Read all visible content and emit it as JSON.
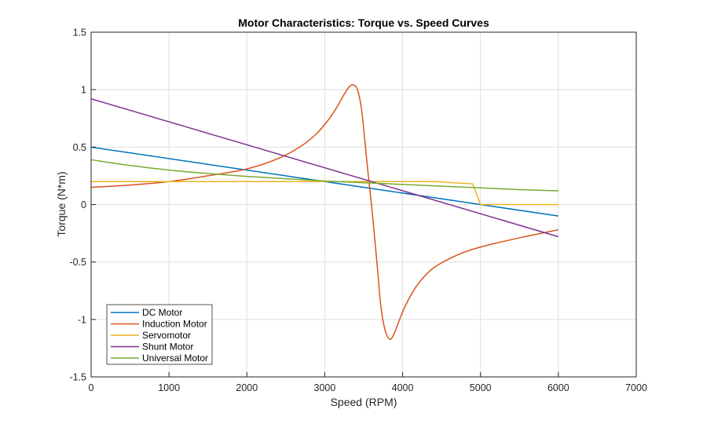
{
  "chart_data": {
    "type": "line",
    "title": "Motor Characteristics: Torque vs. Speed Curves",
    "xlabel": "Speed (RPM)",
    "ylabel": "Torque (N*m)",
    "xlim": [
      0,
      7000
    ],
    "ylim": [
      -1.5,
      1.5
    ],
    "xticks": [
      0,
      1000,
      2000,
      3000,
      4000,
      5000,
      6000,
      7000
    ],
    "xtick_labels": [
      "0",
      "1000",
      "2000",
      "3000",
      "4000",
      "5000",
      "6000",
      "7000"
    ],
    "yticks": [
      -1.5,
      -1,
      -0.5,
      0,
      0.5,
      1,
      1.5
    ],
    "ytick_labels": [
      "-1.5",
      "-1",
      "-0.5",
      "0",
      "0.5",
      "1",
      "1.5"
    ],
    "grid": true,
    "legend_position": "bottom-left",
    "series": [
      {
        "name": "DC Motor",
        "color": "#0072BD",
        "x": [
          0,
          6000
        ],
        "y": [
          0.5,
          -0.1
        ]
      },
      {
        "name": "Induction Motor",
        "color": "#D95319",
        "x": [
          0,
          500,
          1000,
          1500,
          2000,
          2400,
          2700,
          2900,
          3050,
          3150,
          3250,
          3320,
          3370,
          3420,
          3470,
          3520,
          3560,
          3600,
          3640,
          3680,
          3720,
          3770,
          3830,
          3880,
          3950,
          4050,
          4200,
          4400,
          4700,
          5000,
          5500,
          6000
        ],
        "y": [
          0.15,
          0.17,
          0.2,
          0.25,
          0.31,
          0.4,
          0.51,
          0.62,
          0.74,
          0.84,
          0.96,
          1.03,
          1.04,
          1.0,
          0.84,
          0.52,
          0.25,
          0.0,
          -0.28,
          -0.58,
          -0.88,
          -1.08,
          -1.17,
          -1.14,
          -1.02,
          -0.86,
          -0.69,
          -0.55,
          -0.44,
          -0.37,
          -0.29,
          -0.22
        ]
      },
      {
        "name": "Servomotor",
        "color": "#EDB120",
        "x": [
          0,
          4400,
          4900,
          5000,
          6000
        ],
        "y": [
          0.2,
          0.2,
          0.18,
          0.0,
          0.0
        ]
      },
      {
        "name": "Shunt Motor",
        "color": "#7E2F8E",
        "x": [
          0,
          6000
        ],
        "y": [
          0.92,
          -0.28
        ]
      },
      {
        "name": "Universal Motor",
        "color": "#77AC30",
        "x": [
          0,
          500,
          1000,
          1500,
          2000,
          2500,
          3000,
          3500,
          4000,
          4500,
          5000,
          5500,
          6000
        ],
        "y": [
          0.39,
          0.34,
          0.3,
          0.27,
          0.245,
          0.225,
          0.205,
          0.19,
          0.175,
          0.16,
          0.145,
          0.13,
          0.12
        ]
      }
    ]
  }
}
